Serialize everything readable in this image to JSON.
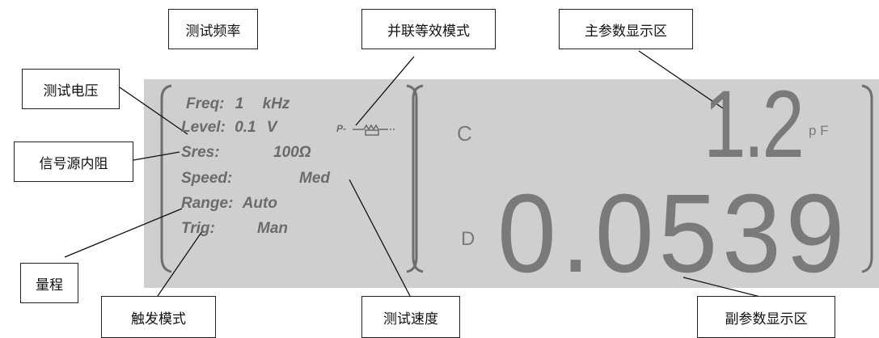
{
  "params": {
    "freq": {
      "label": "Freq:",
      "value": "1",
      "unit": "kHz"
    },
    "level": {
      "label": "Level:",
      "value": "0.1",
      "unit": "V"
    },
    "sres": {
      "label": "Sres:",
      "value": "100Ω"
    },
    "speed": {
      "label": "Speed:",
      "value": "Med"
    },
    "range": {
      "label": "Range:",
      "value": "Auto"
    },
    "trig": {
      "label": "Trig:",
      "value": "Man"
    }
  },
  "mode_symbol": "P-",
  "primary": {
    "symbol": "C",
    "value": "1.2",
    "unit": "p F"
  },
  "secondary": {
    "symbol": "D",
    "value": "0.0539"
  },
  "callouts": {
    "test_freq": "测试频率",
    "parallel_mode": "并联等效模式",
    "primary_area": "主参数显示区",
    "test_voltage": "测试电压",
    "source_resistance": "信号源内阻",
    "range": "量程",
    "trigger_mode": "触发模式",
    "test_speed": "测试速度",
    "secondary_area": "副参数显示区"
  },
  "colors": {
    "lcd_bg": "#cfcfcf",
    "lcd_text": "#6b6b6b",
    "segment": "#7a7a7a"
  }
}
